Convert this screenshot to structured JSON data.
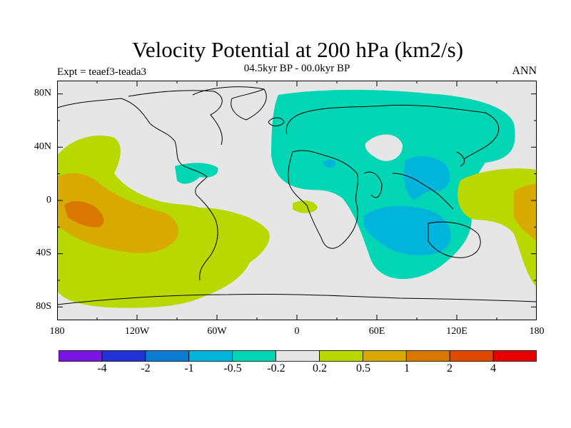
{
  "title": "Velocity Potential at 200 hPa (km2/s)",
  "subtitle": "04.5kyr BP - 00.0kyr BP",
  "expt": "Expt = teaef3-teada3",
  "season": "ANN",
  "lat_ticks": [
    "80N",
    "40N",
    "0",
    "40S",
    "80S"
  ],
  "lon_ticks": [
    "180",
    "120W",
    "60W",
    "0",
    "60E",
    "120E",
    "180"
  ],
  "colorbar": {
    "colors": [
      "#7a14e0",
      "#2232d6",
      "#0a7ad2",
      "#00b4dc",
      "#00d6b4",
      "#e6e6e6",
      "#b8d800",
      "#d8aa00",
      "#d87800",
      "#e04a00",
      "#e60000"
    ],
    "labels": [
      "-4",
      "-2",
      "-1",
      "-0.5",
      "-0.2",
      "0.2",
      "0.5",
      "1",
      "2",
      "4"
    ]
  },
  "map_colors": {
    "ocean": "#e6e6e6",
    "cyan": "#00d6b4",
    "blue": "#00b4dc",
    "green": "#b8d800",
    "orange": "#d8aa00",
    "dark_orange": "#d87800",
    "coast": "#000000"
  }
}
